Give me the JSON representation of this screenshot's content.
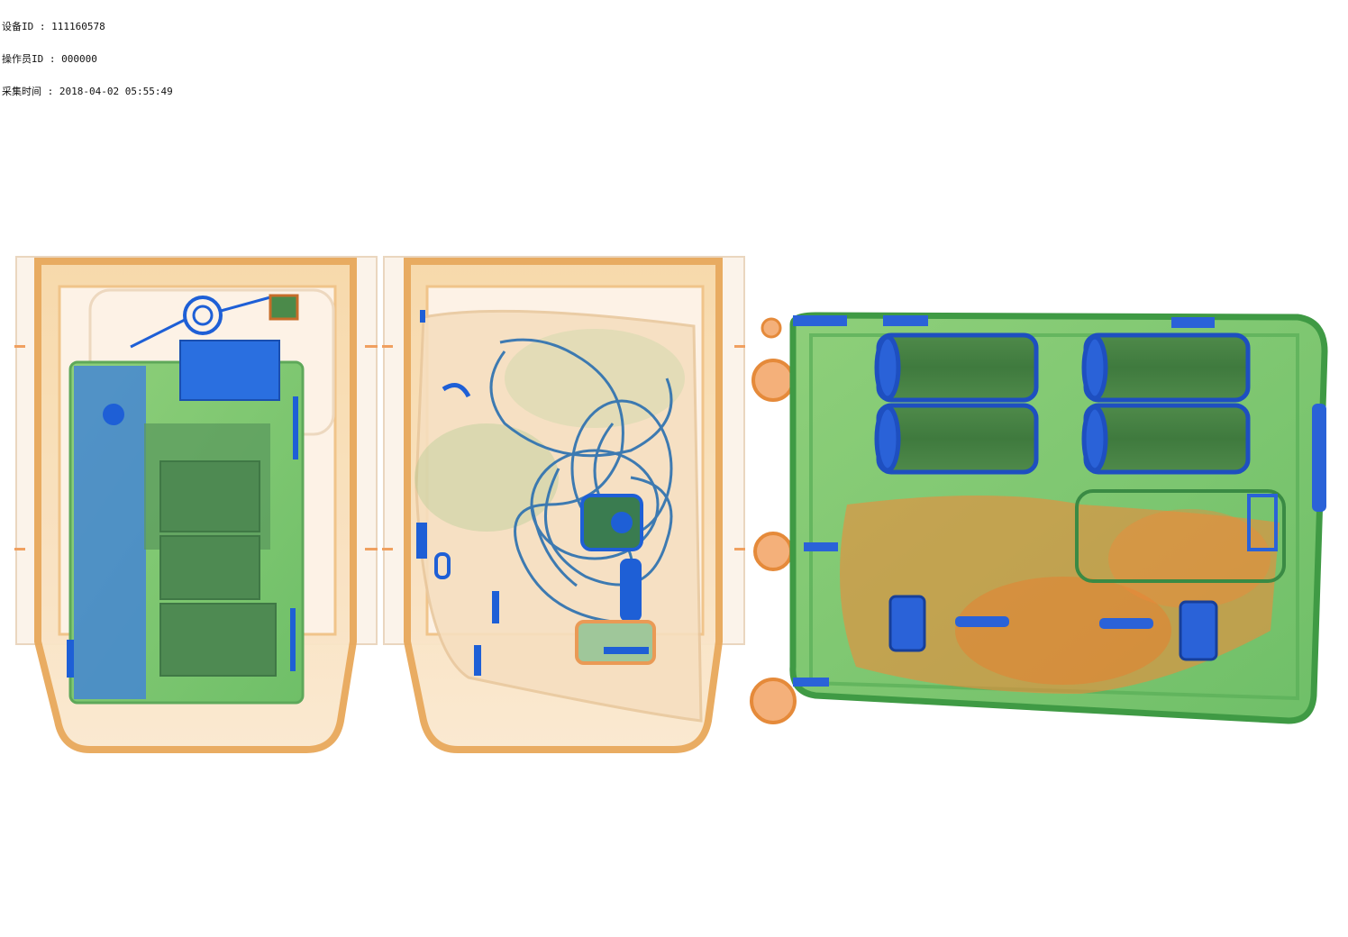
{
  "header": {
    "device_id_label": "设备ID",
    "device_id_value": "111160578",
    "operator_id_label": "操作员ID",
    "operator_id_value": "000000",
    "capture_time_label": "采集时间",
    "capture_time_value": "2018-04-02 05:55:49",
    "separator": " : "
  },
  "colors": {
    "background": "#ffffff",
    "organic": "#f0a040",
    "mixed": "#7cc46a",
    "metal": "#1e5fd6",
    "tray": "#f2c98a"
  },
  "scene": {
    "objects": [
      "laptop-bag",
      "cable-bag",
      "suitcase"
    ]
  }
}
